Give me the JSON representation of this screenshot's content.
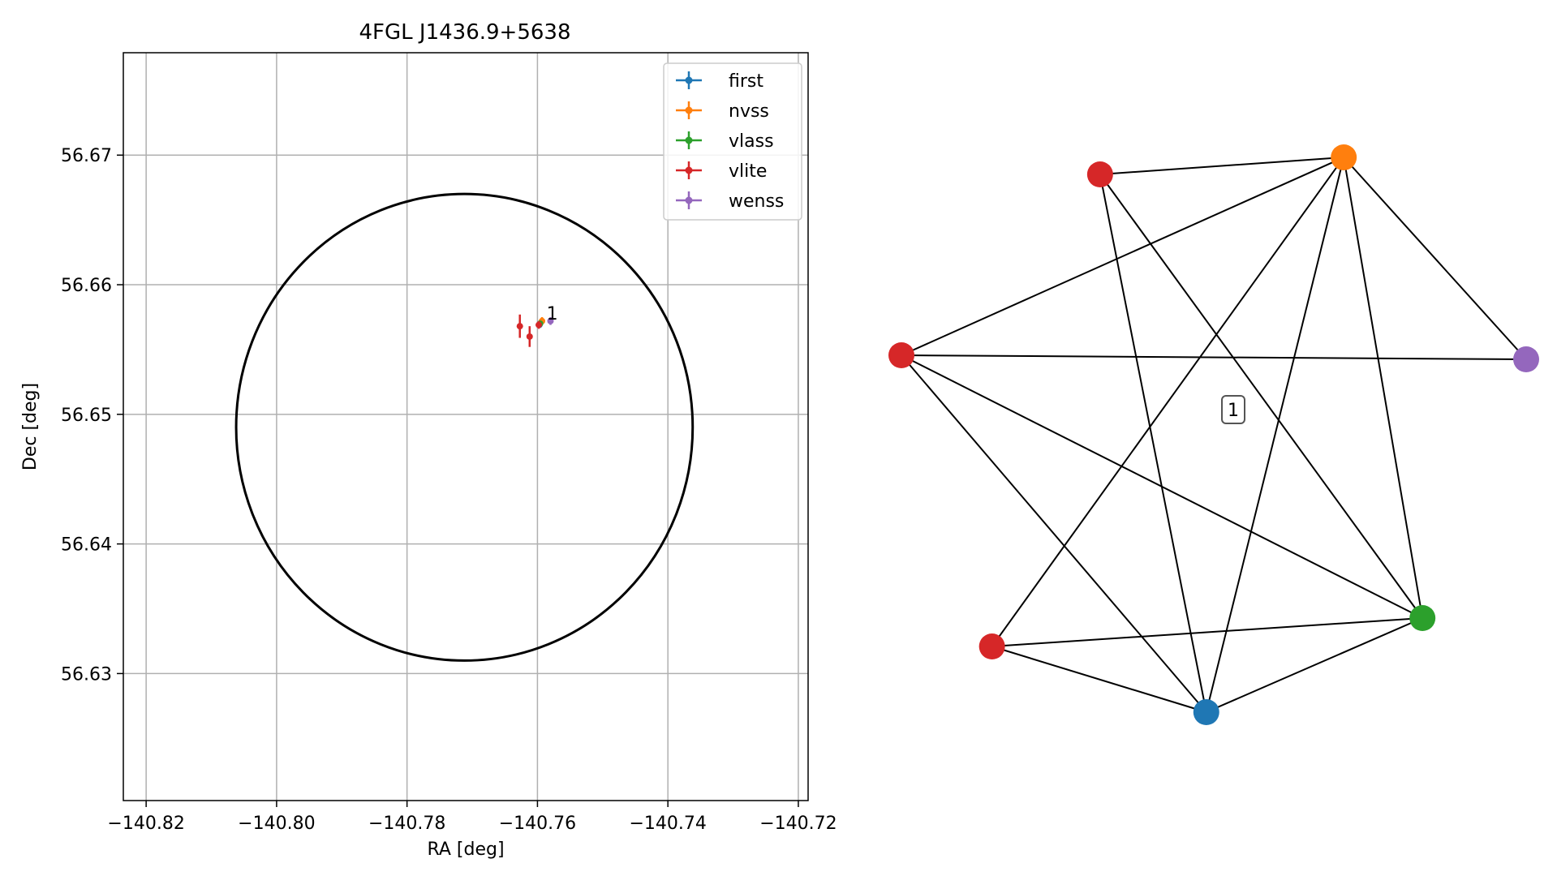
{
  "chart_data": [
    {
      "type": "scatter",
      "title": "4FGL J1436.9+5638",
      "xlabel": "RA [deg]",
      "ylabel": "Dec [deg]",
      "xlim": [
        -140.8235,
        -140.7185
      ],
      "ylim": [
        56.6202,
        56.6779
      ],
      "x_ticks": [
        -140.82,
        -140.8,
        -140.78,
        -140.76,
        -140.74,
        -140.72
      ],
      "x_tick_labels": [
        "−140.82",
        "−140.80",
        "−140.78",
        "−140.76",
        "−140.74",
        "−140.72"
      ],
      "y_ticks": [
        56.63,
        56.64,
        56.65,
        56.66,
        56.67
      ],
      "y_tick_labels": [
        "56.63",
        "56.64",
        "56.65",
        "56.66",
        "56.67"
      ],
      "grid": true,
      "legend_position": "top-right",
      "series": [
        {
          "name": "first",
          "color": "#1f77b4",
          "points": [
            {
              "x": -140.7597,
              "y": 56.6569,
              "xerr": 0.0003,
              "yerr": 0.0002
            }
          ]
        },
        {
          "name": "nvss",
          "color": "#ff7f0e",
          "points": [
            {
              "x": -140.7593,
              "y": 56.6572,
              "xerr": 0.0004,
              "yerr": 0.0003
            }
          ]
        },
        {
          "name": "vlass",
          "color": "#2ca02c",
          "points": [
            {
              "x": -140.7596,
              "y": 56.657,
              "xerr": 0.0002,
              "yerr": 0.0001
            }
          ]
        },
        {
          "name": "vlite",
          "color": "#d62728",
          "points": [
            {
              "x": -140.7627,
              "y": 56.6568,
              "xerr": 0.0003,
              "yerr": 0.0009
            },
            {
              "x": -140.7612,
              "y": 56.656,
              "xerr": 0.0003,
              "yerr": 0.0008
            },
            {
              "x": -140.7598,
              "y": 56.6569,
              "xerr": 0.0002,
              "yerr": 0.0003
            }
          ]
        },
        {
          "name": "wenss",
          "color": "#9467bd",
          "points": [
            {
              "x": -140.758,
              "y": 56.6572,
              "xerr": 0.0003,
              "yerr": 0.0003
            }
          ]
        }
      ],
      "circle": {
        "center_x": -140.7712,
        "center_y": 56.649,
        "radius_x": 0.035,
        "radius_y": 0.018
      },
      "annotations": [
        {
          "text": "1",
          "x": -140.7586,
          "y": 56.6577
        }
      ]
    },
    {
      "type": "network",
      "label": "1",
      "nodes": [
        {
          "id": "red-top",
          "color": "#d62728",
          "x": 0.318,
          "y": 0.215
        },
        {
          "id": "orange",
          "color": "#ff7f0e",
          "x": 0.708,
          "y": 0.194
        },
        {
          "id": "red-left",
          "color": "#d62728",
          "x": 0.0,
          "y": 0.438
        },
        {
          "id": "purple",
          "color": "#9467bd",
          "x": 1.0,
          "y": 0.443
        },
        {
          "id": "green",
          "color": "#2ca02c",
          "x": 0.834,
          "y": 0.762
        },
        {
          "id": "red-bottom",
          "color": "#d62728",
          "x": 0.145,
          "y": 0.797
        },
        {
          "id": "blue",
          "color": "#1f77b4",
          "x": 0.488,
          "y": 0.878
        }
      ],
      "edges": [
        [
          "red-top",
          "orange"
        ],
        [
          "red-top",
          "blue"
        ],
        [
          "red-top",
          "green"
        ],
        [
          "orange",
          "red-left"
        ],
        [
          "orange",
          "purple"
        ],
        [
          "orange",
          "green"
        ],
        [
          "orange",
          "red-bottom"
        ],
        [
          "orange",
          "blue"
        ],
        [
          "red-left",
          "purple"
        ],
        [
          "red-left",
          "green"
        ],
        [
          "red-left",
          "blue"
        ],
        [
          "red-bottom",
          "green"
        ],
        [
          "red-bottom",
          "blue"
        ],
        [
          "blue",
          "green"
        ]
      ]
    }
  ]
}
